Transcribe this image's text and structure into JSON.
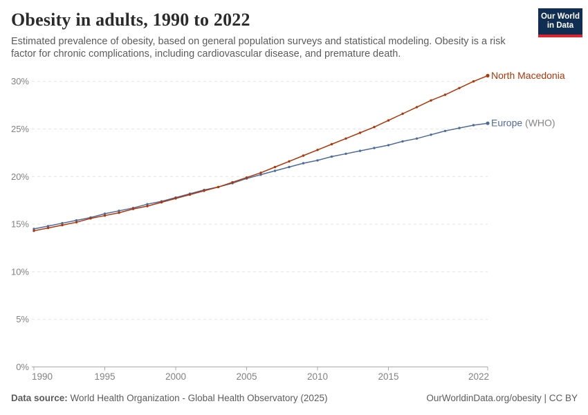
{
  "header": {
    "title": "Obesity in adults, 1990 to 2022",
    "subtitle_lines": [
      "Estimated prevalence of obesity, based on general population surveys and statistical modeling. Obesity is a risk",
      "factor for chronic complications, including cardiovascular disease, and premature death."
    ]
  },
  "logo": {
    "line1": "Our World",
    "line2": "in Data",
    "bg_color": "#0f2e52",
    "stripe_color": "#e0232e"
  },
  "footer": {
    "datasource_label": "Data source:",
    "datasource_value": " World Health Organization - Global Health Observatory (2025)",
    "url": "OurWorldinData.org/obesity",
    "separator": " | ",
    "license": "CC BY"
  },
  "colors": {
    "title_text": "#2b2b2b",
    "subtitle_text": "#5b5b5b",
    "axis_label": "#818181",
    "gridline": "#e2e2e2",
    "axis_line": "#a8a8a8",
    "north_macedonia": "#b13507",
    "europe_who": "#4c6a9c",
    "label_suffix_gray": "#858585"
  },
  "chart_data": {
    "type": "line",
    "title": "Obesity in adults, 1990 to 2022",
    "unit": "%",
    "grid": "horizontal-dashed",
    "legend_position": "end-of-line-labels",
    "ylim": [
      0,
      31
    ],
    "y_ticks": [
      0,
      5,
      10,
      15,
      20,
      25,
      30
    ],
    "y_tick_suffix": "%",
    "x_ticks": [
      1990,
      1995,
      2000,
      2005,
      2010,
      2015,
      2022
    ],
    "x": [
      1990,
      1991,
      1992,
      1993,
      1994,
      1995,
      1996,
      1997,
      1998,
      1999,
      2000,
      2001,
      2002,
      2003,
      2004,
      2005,
      2006,
      2007,
      2008,
      2009,
      2010,
      2011,
      2012,
      2013,
      2014,
      2015,
      2016,
      2017,
      2018,
      2019,
      2020,
      2021,
      2022
    ],
    "series": [
      {
        "name": "North Macedonia",
        "label": "North Macedonia",
        "label_suffix": "",
        "color": "#b13507",
        "values": [
          14.3,
          14.6,
          14.9,
          15.2,
          15.6,
          15.9,
          16.2,
          16.6,
          16.9,
          17.3,
          17.7,
          18.1,
          18.5,
          18.9,
          19.4,
          19.9,
          20.4,
          21.0,
          21.6,
          22.2,
          22.8,
          23.4,
          24.0,
          24.6,
          25.2,
          25.9,
          26.6,
          27.3,
          28.0,
          28.6,
          29.3,
          30.0,
          30.6
        ]
      },
      {
        "name": "Europe (WHO)",
        "label": "Europe",
        "label_suffix": " (WHO)",
        "suffix_color": "#858585",
        "color": "#4c6a9c",
        "values": [
          14.5,
          14.8,
          15.1,
          15.4,
          15.7,
          16.1,
          16.4,
          16.7,
          17.1,
          17.4,
          17.8,
          18.2,
          18.6,
          18.9,
          19.3,
          19.8,
          20.2,
          20.6,
          21.0,
          21.4,
          21.7,
          22.1,
          22.4,
          22.7,
          23.0,
          23.3,
          23.7,
          24.0,
          24.4,
          24.8,
          25.1,
          25.4,
          25.6
        ]
      }
    ]
  }
}
